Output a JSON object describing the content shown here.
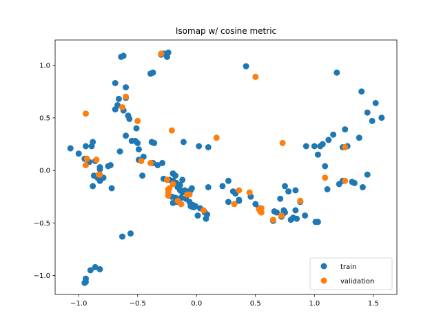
{
  "chart_data": {
    "type": "scatter",
    "title": "Isomap w/ cosine metric",
    "xlabel": "",
    "ylabel": "",
    "xlim": [
      -1.2,
      1.7
    ],
    "ylim": [
      -1.18,
      1.24
    ],
    "xticks": [
      -1.0,
      -0.5,
      0.0,
      0.5,
      1.0,
      1.5
    ],
    "xtick_labels": [
      "−1.0",
      "−0.5",
      "0.0",
      "0.5",
      "1.0",
      "1.5"
    ],
    "yticks": [
      -1.0,
      -0.5,
      0.0,
      0.5,
      1.0
    ],
    "ytick_labels": [
      "−1.0",
      "−0.5",
      "0.0",
      "0.5",
      "1.0"
    ],
    "grid": false,
    "legend_position": "lower-right",
    "series": [
      {
        "name": "train",
        "color": "#1f77b4",
        "points": [
          [
            -1.07,
            0.21
          ],
          [
            -1.0,
            0.16
          ],
          [
            -0.94,
            0.23
          ],
          [
            -0.89,
            0.23
          ],
          [
            -0.88,
            0.27
          ],
          [
            -0.95,
            0.11
          ],
          [
            -0.91,
            0.08
          ],
          [
            -0.86,
            0.09
          ],
          [
            -0.82,
            0.03
          ],
          [
            -0.82,
            0.01
          ],
          [
            -0.87,
            -0.05
          ],
          [
            -0.84,
            -0.07
          ],
          [
            -0.79,
            -0.07
          ],
          [
            -0.82,
            -0.1
          ],
          [
            -0.88,
            -0.15
          ],
          [
            -0.75,
            0.04
          ],
          [
            -0.73,
            0.05
          ],
          [
            -0.72,
            -0.17
          ],
          [
            -0.65,
            0.18
          ],
          [
            -0.67,
            0.62
          ],
          [
            -0.69,
            0.58
          ],
          [
            -0.69,
            0.83
          ],
          [
            -0.66,
            0.68
          ],
          [
            -0.64,
            1.08
          ],
          [
            -0.62,
            1.09
          ],
          [
            -0.6,
            0.79
          ],
          [
            -0.6,
            0.69
          ],
          [
            -0.62,
            0.57
          ],
          [
            -0.58,
            0.52
          ],
          [
            -0.57,
            0.49
          ],
          [
            -0.6,
            0.33
          ],
          [
            -0.55,
            0.28
          ],
          [
            -0.52,
            0.28
          ],
          [
            -0.51,
            0.4
          ],
          [
            -0.5,
            0.26
          ],
          [
            -0.49,
            0.2
          ],
          [
            -0.49,
            0.1
          ],
          [
            -0.45,
            0.13
          ],
          [
            -0.46,
            -0.05
          ],
          [
            -0.39,
            0.92
          ],
          [
            -0.37,
            0.93
          ],
          [
            -0.38,
            0.27
          ],
          [
            -0.36,
            0.26
          ],
          [
            -0.37,
            0.07
          ],
          [
            -0.33,
            0.05
          ],
          [
            -0.29,
            0.07
          ],
          [
            -0.3,
            1.1
          ],
          [
            -0.28,
            1.11
          ],
          [
            -0.25,
            1.08
          ],
          [
            -0.24,
            1.12
          ],
          [
            -0.28,
            -0.08
          ],
          [
            -0.25,
            -0.09
          ],
          [
            -0.23,
            -0.09
          ],
          [
            -0.2,
            -0.1
          ],
          [
            -0.2,
            -0.03
          ],
          [
            -0.18,
            -0.05
          ],
          [
            -0.17,
            -0.12
          ],
          [
            -0.16,
            -0.16
          ],
          [
            -0.14,
            -0.14
          ],
          [
            -0.12,
            -0.09
          ],
          [
            -0.14,
            -0.19
          ],
          [
            -0.12,
            -0.21
          ],
          [
            -0.1,
            -0.19
          ],
          [
            -0.08,
            -0.2
          ],
          [
            -0.05,
            -0.19
          ],
          [
            -0.09,
            -0.27
          ],
          [
            -0.13,
            -0.26
          ],
          [
            -0.18,
            -0.26
          ],
          [
            -0.21,
            -0.25
          ],
          [
            -0.2,
            -0.31
          ],
          [
            -0.17,
            -0.3
          ],
          [
            -0.06,
            -0.3
          ],
          [
            -0.05,
            -0.34
          ],
          [
            -0.02,
            -0.35
          ],
          [
            -0.03,
            -0.33
          ],
          [
            -0.01,
            -0.34
          ],
          [
            0.03,
            -0.36
          ],
          [
            0.07,
            -0.4
          ],
          [
            0.09,
            -0.42
          ],
          [
            0.08,
            -0.46
          ],
          [
            0.01,
            -0.43
          ],
          [
            -0.03,
            -0.35
          ],
          [
            -0.11,
            0.27
          ],
          [
            0.02,
            0.23
          ],
          [
            0.1,
            0.22
          ],
          [
            0.1,
            -0.16
          ],
          [
            -0.04,
            -0.17
          ],
          [
            0.22,
            -0.15
          ],
          [
            0.27,
            -0.1
          ],
          [
            0.27,
            -0.3
          ],
          [
            0.31,
            -0.2
          ],
          [
            0.33,
            -0.22
          ],
          [
            0.36,
            -0.29
          ],
          [
            0.36,
            -0.28
          ],
          [
            0.42,
            0.99
          ],
          [
            0.46,
            -0.25
          ],
          [
            0.5,
            -0.32
          ],
          [
            0.53,
            -0.36
          ],
          [
            0.65,
            -0.48
          ],
          [
            0.66,
            -0.39
          ],
          [
            0.68,
            -0.4
          ],
          [
            0.71,
            -0.27
          ],
          [
            0.72,
            -0.44
          ],
          [
            0.74,
            -0.38
          ],
          [
            0.75,
            -0.4
          ],
          [
            0.73,
            -0.42
          ],
          [
            0.75,
            -0.15
          ],
          [
            0.78,
            -0.2
          ],
          [
            0.8,
            -0.47
          ],
          [
            0.82,
            -0.45
          ],
          [
            0.84,
            -0.38
          ],
          [
            0.85,
            -0.46
          ],
          [
            0.84,
            -0.19
          ],
          [
            0.88,
            -0.3
          ],
          [
            0.92,
            -0.43
          ],
          [
            0.93,
            0.23
          ],
          [
            1.0,
            0.23
          ],
          [
            1.01,
            -0.49
          ],
          [
            1.03,
            -0.49
          ],
          [
            1.03,
            0.15
          ],
          [
            1.05,
            0.23
          ],
          [
            1.07,
            0.25
          ],
          [
            1.09,
            0.04
          ],
          [
            1.11,
            -0.18
          ],
          [
            1.12,
            0.29
          ],
          [
            1.16,
            0.34
          ],
          [
            1.19,
            0.93
          ],
          [
            1.21,
            -0.13
          ],
          [
            1.24,
            0.22
          ],
          [
            1.24,
            -0.1
          ],
          [
            1.26,
            0.39
          ],
          [
            1.28,
            0.23
          ],
          [
            1.32,
            -0.11
          ],
          [
            1.34,
            -0.12
          ],
          [
            1.38,
            0.31
          ],
          [
            1.4,
            0.75
          ],
          [
            1.41,
            -0.16
          ],
          [
            1.45,
            0.55
          ],
          [
            1.45,
            -0.04
          ],
          [
            1.49,
            0.47
          ],
          [
            1.52,
            0.64
          ],
          [
            1.57,
            0.5
          ],
          [
            -0.9,
            -0.95
          ],
          [
            -0.86,
            -0.92
          ],
          [
            -0.82,
            -0.94
          ],
          [
            -0.94,
            -1.03
          ],
          [
            -0.94,
            -1.06
          ],
          [
            -0.95,
            -1.07
          ],
          [
            -0.63,
            -0.63
          ],
          [
            -0.56,
            -0.6
          ]
        ]
      },
      {
        "name": "validation",
        "color": "#ff7f0e",
        "points": [
          [
            -0.94,
            0.54
          ],
          [
            -0.93,
            0.11
          ],
          [
            -0.94,
            0.05
          ],
          [
            -0.85,
            0.1
          ],
          [
            -0.83,
            -0.04
          ],
          [
            -0.82,
            -0.04
          ],
          [
            -0.63,
            0.6
          ],
          [
            -0.6,
            0.7
          ],
          [
            -0.5,
            0.47
          ],
          [
            -0.47,
            0.09
          ],
          [
            -0.39,
            0.07
          ],
          [
            -0.3,
            1.11
          ],
          [
            -0.21,
            0.38
          ],
          [
            -0.25,
            -0.09
          ],
          [
            -0.24,
            -0.18
          ],
          [
            -0.24,
            -0.21
          ],
          [
            -0.23,
            -0.17
          ],
          [
            -0.24,
            -0.24
          ],
          [
            -0.2,
            -0.13
          ],
          [
            -0.16,
            -0.29
          ],
          [
            -0.13,
            -0.32
          ],
          [
            -0.08,
            -0.23
          ],
          [
            -0.06,
            -0.23
          ],
          [
            0.06,
            -0.38
          ],
          [
            0.17,
            0.31
          ],
          [
            0.32,
            -0.32
          ],
          [
            0.36,
            -0.19
          ],
          [
            0.45,
            -0.21
          ],
          [
            0.5,
            0.89
          ],
          [
            0.53,
            -0.37
          ],
          [
            0.54,
            -0.39
          ],
          [
            0.55,
            -0.4
          ],
          [
            0.55,
            -0.36
          ],
          [
            0.65,
            -0.47
          ],
          [
            0.72,
            -0.43
          ],
          [
            0.73,
            0.26
          ],
          [
            0.88,
            -0.29
          ],
          [
            1.09,
            -0.07
          ],
          [
            1.26,
            -0.1
          ],
          [
            1.26,
            0.22
          ]
        ]
      }
    ]
  }
}
